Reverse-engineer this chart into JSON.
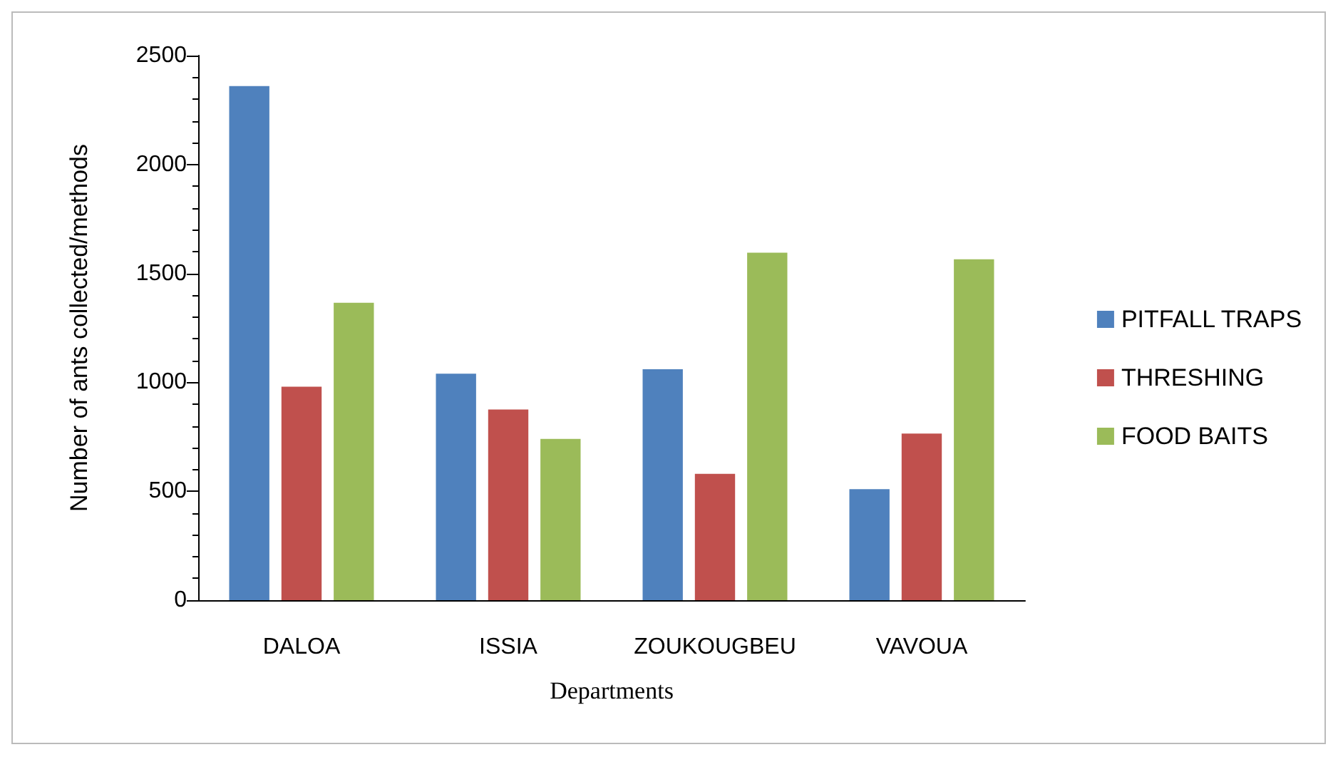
{
  "chart_data": {
    "type": "bar",
    "xlabel": "Departments",
    "ylabel": "Number of ants collected/methods",
    "categories": [
      "DALOA",
      "ISSIA",
      "ZOUKOUGBEU",
      "VAVOUA"
    ],
    "series": [
      {
        "name": "PITFALL TRAPS",
        "color": "#4f81bd",
        "values": [
          2360,
          1040,
          1060,
          510
        ]
      },
      {
        "name": "THRESHING",
        "color": "#c0504d",
        "values": [
          980,
          875,
          580,
          765
        ]
      },
      {
        "name": "FOOD BAITS",
        "color": "#9bbb59",
        "values": [
          1365,
          740,
          1595,
          1565
        ]
      }
    ],
    "ylim": [
      0,
      2500
    ],
    "yticks": [
      0,
      500,
      1000,
      1500,
      2000,
      2500
    ],
    "grid": false,
    "legend": "right"
  }
}
